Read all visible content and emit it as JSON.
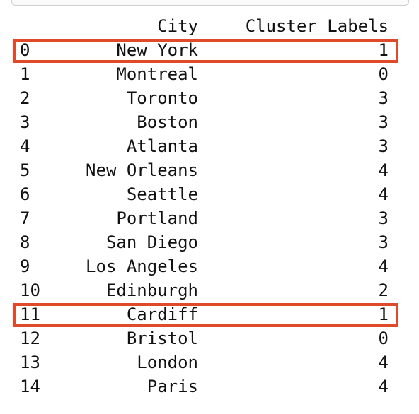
{
  "columns": {
    "city": "City",
    "cluster": "Cluster Labels"
  },
  "rows": [
    {
      "index": "0",
      "city": "New York",
      "cluster": "1",
      "highlighted": true
    },
    {
      "index": "1",
      "city": "Montreal",
      "cluster": "0",
      "highlighted": false
    },
    {
      "index": "2",
      "city": "Toronto",
      "cluster": "3",
      "highlighted": false
    },
    {
      "index": "3",
      "city": "Boston",
      "cluster": "3",
      "highlighted": false
    },
    {
      "index": "4",
      "city": "Atlanta",
      "cluster": "3",
      "highlighted": false
    },
    {
      "index": "5",
      "city": "New Orleans",
      "cluster": "4",
      "highlighted": false
    },
    {
      "index": "6",
      "city": "Seattle",
      "cluster": "4",
      "highlighted": false
    },
    {
      "index": "7",
      "city": "Portland",
      "cluster": "3",
      "highlighted": false
    },
    {
      "index": "8",
      "city": "San Diego",
      "cluster": "3",
      "highlighted": false
    },
    {
      "index": "9",
      "city": "Los Angeles",
      "cluster": "4",
      "highlighted": false
    },
    {
      "index": "10",
      "city": "Edinburgh",
      "cluster": "2",
      "highlighted": false
    },
    {
      "index": "11",
      "city": "Cardiff",
      "cluster": "1",
      "highlighted": true
    },
    {
      "index": "12",
      "city": "Bristol",
      "cluster": "0",
      "highlighted": false
    },
    {
      "index": "13",
      "city": "London",
      "cluster": "4",
      "highlighted": false
    },
    {
      "index": "14",
      "city": "Paris",
      "cluster": "4",
      "highlighted": false
    }
  ],
  "highlight_color": "#e04a2b"
}
